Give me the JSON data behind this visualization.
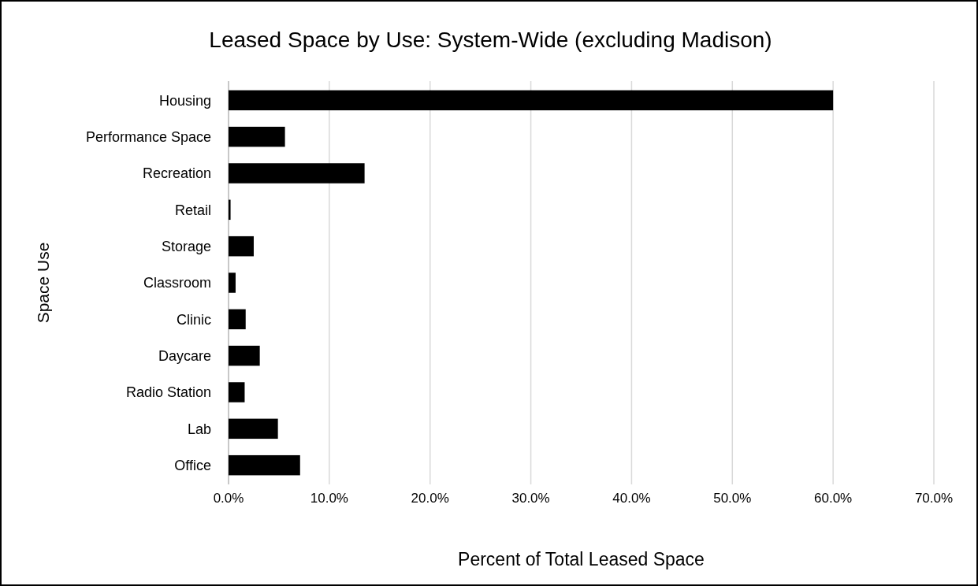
{
  "chart_data": {
    "type": "bar",
    "orientation": "horizontal",
    "title": "Leased Space by Use: System-Wide (excluding Madison)",
    "xlabel": "Percent of Total Leased Space",
    "ylabel": "Space Use",
    "categories": [
      "Housing",
      "Performance Space",
      "Recreation",
      "Retail",
      "Storage",
      "Classroom",
      "Clinic",
      "Daycare",
      "Radio Station",
      "Lab",
      "Office"
    ],
    "values": [
      60.0,
      5.6,
      13.5,
      0.2,
      2.5,
      0.7,
      1.7,
      3.1,
      1.6,
      4.9,
      7.1
    ],
    "color": "#000000",
    "xlim": [
      0,
      70
    ],
    "xticks": [
      {
        "value": 0,
        "label": "0.0%"
      },
      {
        "value": 10,
        "label": "10.0%"
      },
      {
        "value": 20,
        "label": "20.0%"
      },
      {
        "value": 30,
        "label": "30.0%"
      },
      {
        "value": 40,
        "label": "40.0%"
      },
      {
        "value": 50,
        "label": "50.0%"
      },
      {
        "value": 60,
        "label": "60.0%"
      },
      {
        "value": 70,
        "label": "70.0%"
      }
    ],
    "grid": "x"
  }
}
